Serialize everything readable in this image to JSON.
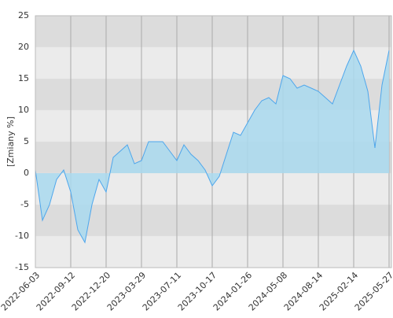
{
  "chart_data": {
    "type": "area",
    "y_label": "[Zmiany %]",
    "x": [
      "2022-06-03",
      "2022-06-23",
      "2022-07-13",
      "2022-08-02",
      "2022-08-22",
      "2022-09-12",
      "2022-09-30",
      "2022-10-20",
      "2022-11-09",
      "2022-11-29",
      "2022-12-20",
      "2023-01-09",
      "2023-01-27",
      "2023-02-16",
      "2023-03-08",
      "2023-03-29",
      "2023-04-18",
      "2023-05-10",
      "2023-05-31",
      "2023-06-20",
      "2023-07-11",
      "2023-07-31",
      "2023-08-18",
      "2023-09-07",
      "2023-09-27",
      "2023-10-17",
      "2023-11-06",
      "2023-11-24",
      "2023-12-14",
      "2024-01-05",
      "2024-01-26",
      "2024-02-15",
      "2024-03-07",
      "2024-03-27",
      "2024-04-17",
      "2024-05-08",
      "2024-05-28",
      "2024-06-17",
      "2024-07-05",
      "2024-07-25",
      "2024-08-14",
      "2024-09-20",
      "2024-10-29",
      "2024-12-05",
      "2025-01-14",
      "2025-02-14",
      "2025-03-06",
      "2025-03-26",
      "2025-04-17",
      "2025-05-07",
      "2025-05-27"
    ],
    "values": [
      0.5,
      -7.5,
      -5,
      -1,
      0.5,
      -3,
      -9,
      -11,
      -5,
      -1,
      -3,
      2.5,
      3.5,
      4.5,
      1.5,
      2,
      5,
      5,
      5,
      3.5,
      2,
      4.5,
      3,
      2,
      0.5,
      -2,
      -0.5,
      3,
      6.5,
      6,
      8,
      10,
      11.5,
      12,
      11,
      15.5,
      15,
      13.5,
      14,
      13.5,
      13,
      12,
      11,
      14,
      17,
      19.5,
      17,
      13,
      4,
      14,
      19.5
    ],
    "color": "#4da6ec",
    "fill": "#a9d9ef",
    "xticks": [
      "2022-06-03",
      "2022-09-12",
      "2022-12-20",
      "2023-03-29",
      "2023-07-11",
      "2023-10-17",
      "2024-01-26",
      "2024-05-08",
      "2024-08-14",
      "2025-02-14",
      "2025-05-27"
    ],
    "ylim": [
      -15,
      25
    ],
    "yticks": [
      -15,
      -10,
      -5,
      0,
      5,
      10,
      15,
      20,
      25
    ],
    "grid": true
  }
}
